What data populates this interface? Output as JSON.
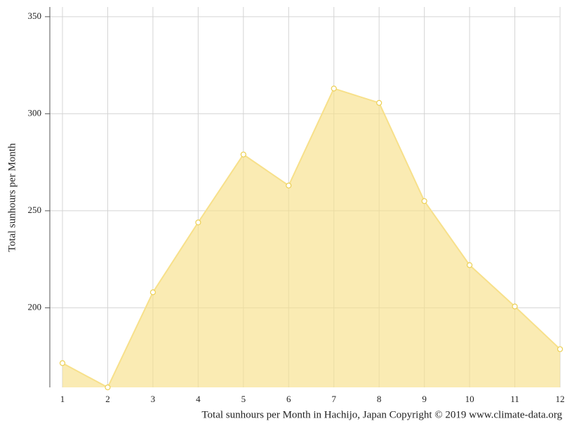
{
  "chart_data": {
    "type": "area",
    "title": "Total sunhours per Month in Hachijo, Japan Copyright © 2019 www.climate-data.org",
    "y_label": "Total sunhours per Month",
    "x": [
      1,
      2,
      3,
      4,
      5,
      6,
      7,
      8,
      9,
      10,
      11,
      12
    ],
    "series": [
      {
        "name": "Total sunhours per Month",
        "color": "#f7e08a",
        "values": [
          171.5,
          159,
          208,
          244,
          279,
          263,
          313,
          305.6,
          255,
          222,
          200.7,
          178.7
        ]
      }
    ],
    "xlim": [
      1,
      12
    ],
    "ylim": [
      159,
      355
    ],
    "yticks": [
      200,
      250,
      300,
      350
    ],
    "grid": true
  }
}
